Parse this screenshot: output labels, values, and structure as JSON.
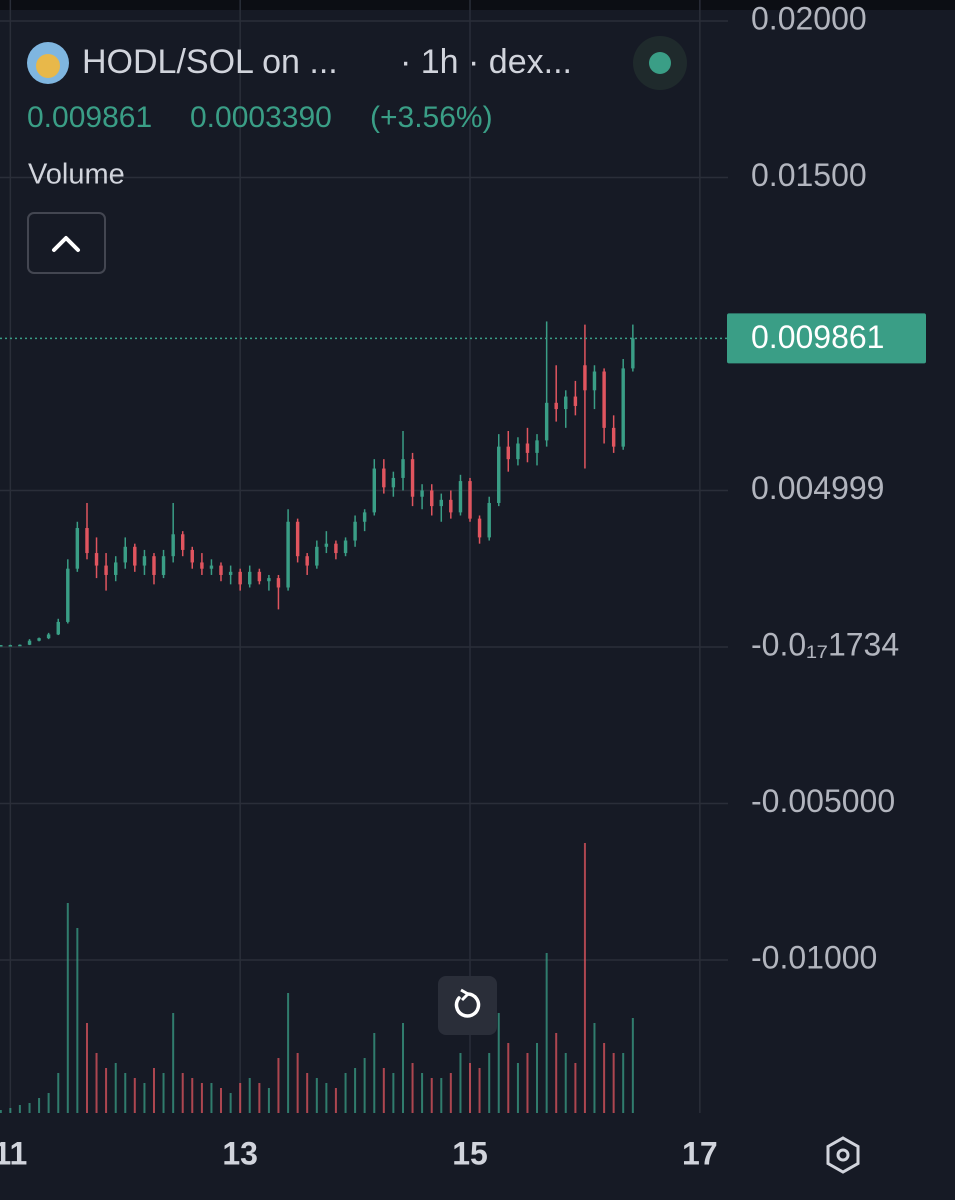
{
  "header": {
    "title": "HODL/SOL on ...",
    "interval": "· 1h · dex...",
    "price": "0.009861",
    "change": "0.0003390",
    "change_pct": "(+3.56%)",
    "volume_label": "Volume"
  },
  "chart_data": {
    "type": "candlestick",
    "x": [
      10.917,
      11,
      11.083,
      11.167,
      11.25,
      11.333,
      11.417,
      11.5,
      11.583,
      11.667,
      11.75,
      11.833,
      11.917,
      12,
      12.083,
      12.167,
      12.25,
      12.333,
      12.417,
      12.5,
      12.583,
      12.667,
      12.75,
      12.833,
      12.917,
      13,
      13.083,
      13.167,
      13.25,
      13.333,
      13.417,
      13.5,
      13.583,
      13.667,
      13.75,
      13.833,
      13.917,
      14,
      14.083,
      14.167,
      14.25,
      14.333,
      14.417,
      14.5,
      14.583,
      14.667,
      14.75,
      14.833,
      14.917,
      15,
      15.083,
      15.167,
      15.25,
      15.333,
      15.417,
      15.5,
      15.583,
      15.667,
      15.75,
      15.833,
      15.917,
      16,
      16.083,
      16.167,
      16.25,
      16.333,
      16.417
    ],
    "open": [
      5e-05,
      6e-05,
      6e-05,
      7e-05,
      0.0002,
      0.00028,
      0.0004,
      0.0008,
      0.0025,
      0.0038,
      0.003,
      0.0026,
      0.0023,
      0.0027,
      0.0032,
      0.0026,
      0.0029,
      0.0023,
      0.0029,
      0.0036,
      0.0031,
      0.0027,
      0.0025,
      0.0026,
      0.0023,
      0.0024,
      0.002,
      0.0024,
      0.0021,
      0.0022,
      0.0019,
      0.004,
      0.0029,
      0.0026,
      0.0032,
      0.0033,
      0.003,
      0.0034,
      0.004,
      0.0043,
      0.0057,
      0.0051,
      0.0054,
      0.006,
      0.0048,
      0.005,
      0.0045,
      0.0047,
      0.0043,
      0.0053,
      0.0041,
      0.0035,
      0.0046,
      0.0064,
      0.006,
      0.0065,
      0.0062,
      0.0066,
      0.0078,
      0.0076,
      0.008,
      0.009,
      0.0082,
      0.0088,
      0.007,
      0.0064,
      0.0089
    ],
    "high": [
      6e-05,
      7e-05,
      8e-05,
      0.00025,
      0.0003,
      0.00045,
      0.0009,
      0.0028,
      0.004,
      0.0046,
      0.0035,
      0.003,
      0.0029,
      0.0035,
      0.0033,
      0.0031,
      0.003,
      0.0031,
      0.0046,
      0.0037,
      0.0032,
      0.003,
      0.0028,
      0.0027,
      0.0026,
      0.0025,
      0.0026,
      0.0025,
      0.0023,
      0.0023,
      0.0044,
      0.0041,
      0.003,
      0.0034,
      0.0037,
      0.0034,
      0.0035,
      0.0042,
      0.0044,
      0.006,
      0.006,
      0.0056,
      0.0069,
      0.0062,
      0.0052,
      0.0052,
      0.0049,
      0.005,
      0.0055,
      0.0054,
      0.0042,
      0.0048,
      0.0068,
      0.0069,
      0.0067,
      0.007,
      0.0068,
      0.0104,
      0.009,
      0.0082,
      0.0085,
      0.0103,
      0.009,
      0.0089,
      0.0074,
      0.0092,
      0.0103
    ],
    "low": [
      4e-05,
      5e-05,
      5e-05,
      6e-05,
      0.00018,
      0.00025,
      0.00038,
      0.00075,
      0.0024,
      0.0028,
      0.0022,
      0.0018,
      0.0021,
      0.0025,
      0.0024,
      0.0023,
      0.002,
      0.0022,
      0.0027,
      0.0029,
      0.0025,
      0.0023,
      0.0023,
      0.0021,
      0.002,
      0.0018,
      0.0019,
      0.002,
      0.0018,
      0.0012,
      0.0018,
      0.0027,
      0.0023,
      0.0025,
      0.003,
      0.0028,
      0.0029,
      0.0032,
      0.0037,
      0.0042,
      0.0049,
      0.0048,
      0.005,
      0.0045,
      0.0044,
      0.0042,
      0.004,
      0.0041,
      0.0042,
      0.004,
      0.0033,
      0.0034,
      0.0045,
      0.0056,
      0.0058,
      0.0059,
      0.0058,
      0.0064,
      0.0072,
      0.007,
      0.0074,
      0.0057,
      0.0076,
      0.0065,
      0.0062,
      0.0063,
      0.0088
    ],
    "close": [
      6e-05,
      6e-05,
      7e-05,
      0.0002,
      0.00028,
      0.0004,
      0.0008,
      0.0025,
      0.0038,
      0.003,
      0.0026,
      0.0023,
      0.0027,
      0.0032,
      0.0026,
      0.0029,
      0.0023,
      0.0029,
      0.0036,
      0.0031,
      0.0027,
      0.0025,
      0.0026,
      0.0023,
      0.0024,
      0.002,
      0.0024,
      0.0021,
      0.0022,
      0.0019,
      0.004,
      0.0029,
      0.0026,
      0.0032,
      0.0033,
      0.003,
      0.0034,
      0.004,
      0.0043,
      0.0057,
      0.0051,
      0.0054,
      0.006,
      0.0048,
      0.005,
      0.0045,
      0.0047,
      0.0043,
      0.0053,
      0.0041,
      0.0035,
      0.0046,
      0.0064,
      0.006,
      0.0065,
      0.0062,
      0.0066,
      0.0078,
      0.0076,
      0.008,
      0.0077,
      0.0082,
      0.0088,
      0.007,
      0.0064,
      0.0089,
      0.009861
    ],
    "volume": [
      3,
      5,
      8,
      10,
      15,
      20,
      40,
      210,
      185,
      90,
      60,
      45,
      50,
      40,
      35,
      30,
      45,
      40,
      100,
      40,
      35,
      30,
      30,
      25,
      20,
      30,
      35,
      30,
      25,
      55,
      120,
      60,
      40,
      35,
      30,
      25,
      40,
      45,
      55,
      80,
      45,
      40,
      90,
      50,
      40,
      35,
      35,
      40,
      60,
      50,
      45,
      60,
      100,
      70,
      50,
      60,
      70,
      160,
      80,
      60,
      50,
      270,
      90,
      70,
      60,
      60,
      95
    ],
    "up_color": "#3a9e86",
    "down_color": "#e0555f",
    "last_price": 0.009861,
    "xlim": [
      10.91,
      17.245
    ],
    "xticks": [
      11,
      13,
      15,
      17
    ],
    "ylim": [
      -0.01489,
      0.02067
    ],
    "yticks": [
      {
        "value": 0.02,
        "label": "0.02000"
      },
      {
        "value": 0.015,
        "label": "0.01500"
      },
      0.004999,
      {
        "value": -1.734e-18,
        "label": "-0.0₁₇1734"
      },
      {
        "value": -0.005,
        "label": "-0.005000"
      },
      {
        "value": -0.01,
        "label": "-0.01000"
      }
    ],
    "grid": true
  }
}
